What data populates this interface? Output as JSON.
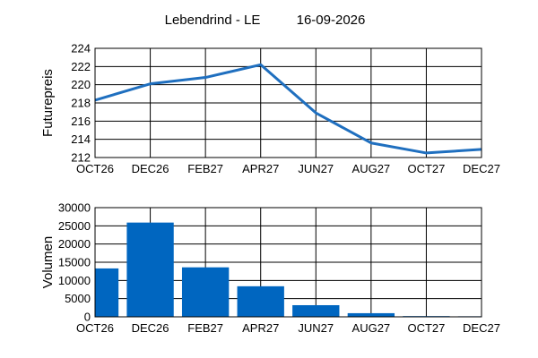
{
  "title": "Lebendrind - LE",
  "date": "16-09-2026",
  "chart_data": [
    {
      "type": "line",
      "ylabel": "Futurepreis",
      "ylim": [
        212,
        224
      ],
      "yticks": [
        212,
        214,
        216,
        218,
        220,
        222,
        224
      ],
      "categories": [
        "OCT26",
        "DEC26",
        "FEB27",
        "APR27",
        "JUN27",
        "AUG27",
        "OCT27",
        "DEC27"
      ],
      "values": [
        218.3,
        220.1,
        220.8,
        222.2,
        216.9,
        213.6,
        212.5,
        212.9
      ],
      "color": "#1f6fbf",
      "grid": true
    },
    {
      "type": "bar",
      "ylabel": "Volumen",
      "ylim": [
        0,
        30000
      ],
      "yticks": [
        0,
        5000,
        10000,
        15000,
        20000,
        25000,
        30000
      ],
      "categories": [
        "OCT26",
        "DEC26",
        "FEB27",
        "APR27",
        "JUN27",
        "AUG27",
        "OCT27",
        "DEC27"
      ],
      "values": [
        13300,
        25900,
        13600,
        8400,
        3200,
        1000,
        200,
        150
      ],
      "color": "#0066c0",
      "grid": true
    }
  ]
}
